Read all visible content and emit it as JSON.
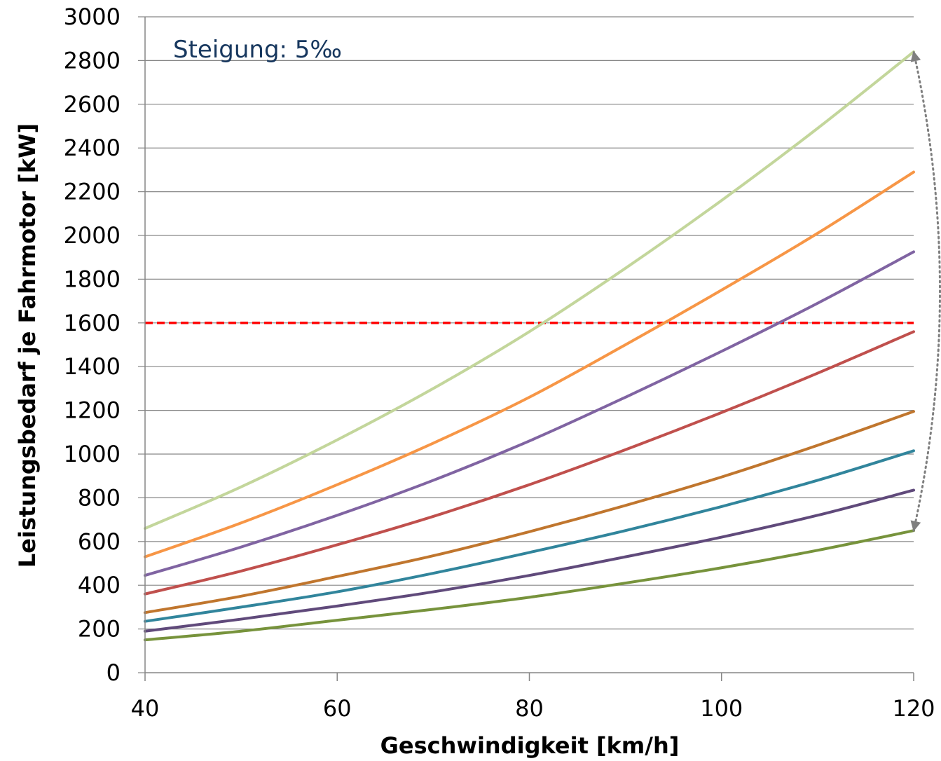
{
  "chart_data": {
    "type": "line",
    "title": "",
    "xlabel": "Geschwindigkeit [km/h]",
    "ylabel": "Leistungsbedarf je Fahrmotor [kW]",
    "xlim": [
      40,
      120
    ],
    "ylim": [
      0,
      3000
    ],
    "x_ticks": [
      40,
      60,
      80,
      100,
      120
    ],
    "y_ticks": [
      0,
      200,
      400,
      600,
      800,
      1000,
      1200,
      1400,
      1600,
      1800,
      2000,
      2200,
      2400,
      2600,
      2800,
      3000
    ],
    "grid": "horizontal",
    "legend": "none",
    "annotation": {
      "text": "Steigung: 5‰",
      "color": "#17375E"
    },
    "reference_line": {
      "y": 1600,
      "color": "#FF0000",
      "style": "dashed"
    },
    "range_arrow": {
      "x": 120,
      "y_from": 650,
      "y_to": 2840,
      "color": "#7F7F7F",
      "style": "dotted"
    },
    "x": [
      40,
      50,
      60,
      70,
      80,
      90,
      100,
      110,
      120
    ],
    "series": [
      {
        "color": "#77933C",
        "values": [
          150,
          190,
          240,
          290,
          345,
          410,
          480,
          560,
          650
        ]
      },
      {
        "color": "#604A7B",
        "values": [
          190,
          245,
          305,
          370,
          445,
          530,
          620,
          720,
          835
        ]
      },
      {
        "color": "#31859C",
        "values": [
          235,
          300,
          370,
          455,
          550,
          650,
          760,
          880,
          1015
        ]
      },
      {
        "color": "#C0762E",
        "values": [
          275,
          350,
          440,
          535,
          645,
          765,
          895,
          1040,
          1195
        ]
      },
      {
        "color": "#C0504D",
        "values": [
          360,
          465,
          585,
          715,
          860,
          1020,
          1190,
          1370,
          1560
        ]
      },
      {
        "color": "#8064A2",
        "values": [
          445,
          575,
          720,
          880,
          1060,
          1260,
          1470,
          1690,
          1925
        ]
      },
      {
        "color": "#F79646",
        "values": [
          530,
          685,
          860,
          1050,
          1260,
          1500,
          1750,
          2010,
          2290
        ]
      },
      {
        "color": "#C3D69B",
        "values": [
          660,
          850,
          1065,
          1300,
          1560,
          1850,
          2160,
          2490,
          2840
        ]
      }
    ]
  }
}
